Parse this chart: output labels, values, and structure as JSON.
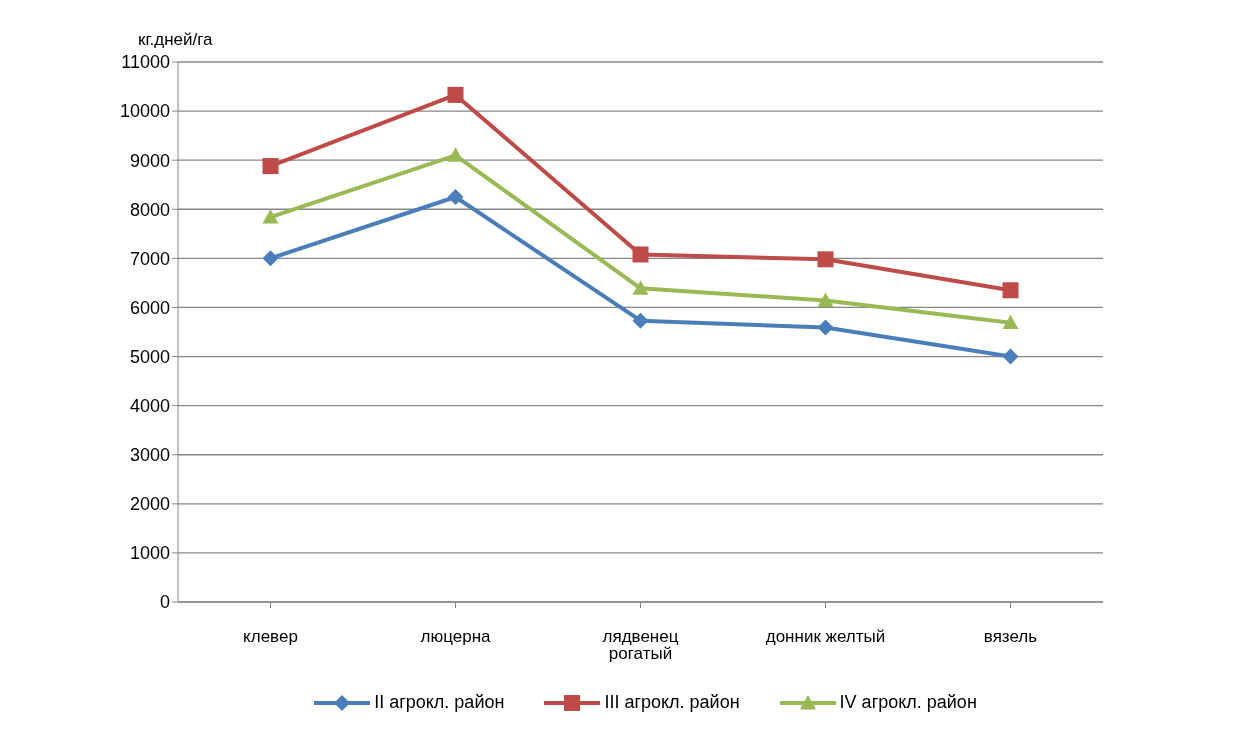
{
  "chart_data": {
    "type": "line",
    "ylabel": "кг.дней/га",
    "categories": [
      "клевер",
      "люцерна",
      "лядвенец рогатый",
      "донник желтый",
      "вязель"
    ],
    "series": [
      {
        "name": "II агрокл. район",
        "color": "#4a7ebb",
        "marker": "diamond",
        "values": [
          7000,
          8250,
          5730,
          5590,
          5000
        ]
      },
      {
        "name": "III агрокл. район",
        "color": "#be4b48",
        "marker": "square",
        "values": [
          8880,
          10330,
          7080,
          6980,
          6350
        ]
      },
      {
        "name": "IV агрокл. район",
        "color": "#98b954",
        "marker": "triangle",
        "values": [
          7840,
          9100,
          6390,
          6140,
          5690
        ]
      }
    ],
    "ylim": [
      0,
      11000
    ],
    "yticks": [
      0,
      1000,
      2000,
      3000,
      4000,
      5000,
      6000,
      7000,
      8000,
      9000,
      10000,
      11000
    ],
    "grid": "y",
    "legend": "bottom",
    "line_style": "solid"
  }
}
